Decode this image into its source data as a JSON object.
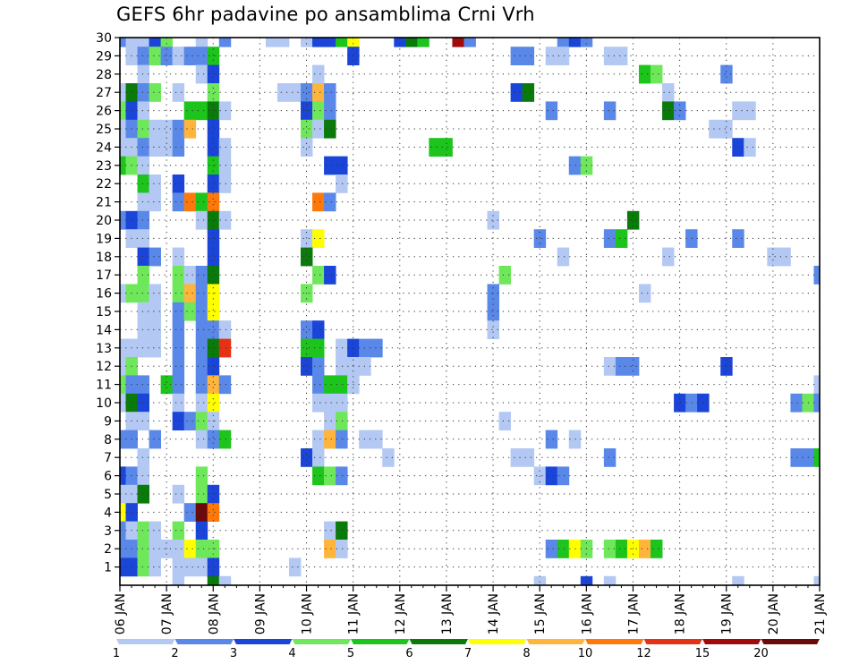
{
  "chart_data": {
    "type": "heatmap",
    "title": "GEFS 6hr padavine po ansamblima Crni Vrh",
    "xlabel": "",
    "ylabel": "",
    "x_ticks": [
      "06 JAN",
      "07 JAN",
      "08 JAN",
      "09 JAN",
      "10 JAN",
      "11 JAN",
      "12 JAN",
      "13 JAN",
      "14 JAN",
      "15 JAN",
      "16 JAN",
      "17 JAN",
      "18 JAN",
      "19 JAN",
      "20 JAN",
      "21 JAN"
    ],
    "x_range_hours": [
      0,
      360
    ],
    "time_step_hours": 6,
    "members": [
      1,
      30
    ],
    "y_ticks": [
      "1",
      "2",
      "3",
      "4",
      "5",
      "6",
      "7",
      "8",
      "9",
      "10",
      "11",
      "12",
      "13",
      "14",
      "15",
      "16",
      "17",
      "18",
      "19",
      "20",
      "21",
      "22",
      "23",
      "24",
      "25",
      "26",
      "27",
      "28",
      "29",
      "30"
    ],
    "grid": true,
    "colorbar": {
      "labels": [
        "1",
        "2",
        "3",
        "4",
        "5",
        "6",
        "7",
        "8",
        "10",
        "12",
        "15",
        "20"
      ],
      "colors": [
        "#b3c8f2",
        "#5a88e8",
        "#1a45d8",
        "#6ee85a",
        "#1cc41c",
        "#0a7a0a",
        "#ffff00",
        "#ffb43c",
        "#ff780a",
        "#e63214",
        "#a00a0a",
        "#6a0a0a"
      ]
    },
    "cells": [
      [
        30,
        0,
        2
      ],
      [
        30,
        1,
        1
      ],
      [
        30,
        2,
        1
      ],
      [
        30,
        3,
        3
      ],
      [
        30,
        4,
        4
      ],
      [
        30,
        7,
        1
      ],
      [
        30,
        9,
        2
      ],
      [
        30,
        13,
        1
      ],
      [
        30,
        14,
        1
      ],
      [
        30,
        16,
        1
      ],
      [
        30,
        17,
        3
      ],
      [
        30,
        18,
        3
      ],
      [
        30,
        19,
        5
      ],
      [
        30,
        20,
        7
      ],
      [
        30,
        24,
        3
      ],
      [
        30,
        25,
        6
      ],
      [
        30,
        26,
        5
      ],
      [
        30,
        29,
        11
      ],
      [
        30,
        30,
        2
      ],
      [
        30,
        38,
        2
      ],
      [
        30,
        39,
        3
      ],
      [
        30,
        40,
        2
      ],
      [
        29,
        1,
        1
      ],
      [
        29,
        2,
        2
      ],
      [
        29,
        3,
        4
      ],
      [
        29,
        4,
        2
      ],
      [
        29,
        5,
        1
      ],
      [
        29,
        6,
        2
      ],
      [
        29,
        7,
        2
      ],
      [
        29,
        8,
        5
      ],
      [
        29,
        20,
        3
      ],
      [
        29,
        34,
        2
      ],
      [
        29,
        35,
        2
      ],
      [
        29,
        37,
        1
      ],
      [
        29,
        38,
        1
      ],
      [
        29,
        42,
        1
      ],
      [
        29,
        43,
        1
      ],
      [
        28,
        2,
        1
      ],
      [
        28,
        7,
        1
      ],
      [
        28,
        8,
        3
      ],
      [
        28,
        17,
        1
      ],
      [
        28,
        45,
        5
      ],
      [
        28,
        46,
        4
      ],
      [
        28,
        52,
        2
      ],
      [
        27,
        0,
        1
      ],
      [
        27,
        1,
        6
      ],
      [
        27,
        2,
        2
      ],
      [
        27,
        3,
        4
      ],
      [
        27,
        5,
        1
      ],
      [
        27,
        8,
        4
      ],
      [
        27,
        14,
        1
      ],
      [
        27,
        15,
        1
      ],
      [
        27,
        16,
        2
      ],
      [
        27,
        17,
        8
      ],
      [
        27,
        18,
        2
      ],
      [
        27,
        34,
        3
      ],
      [
        27,
        35,
        6
      ],
      [
        27,
        47,
        1
      ],
      [
        26,
        0,
        4
      ],
      [
        26,
        1,
        3
      ],
      [
        26,
        2,
        1
      ],
      [
        26,
        6,
        5
      ],
      [
        26,
        7,
        5
      ],
      [
        26,
        8,
        6
      ],
      [
        26,
        9,
        1
      ],
      [
        26,
        16,
        3
      ],
      [
        26,
        17,
        4
      ],
      [
        26,
        18,
        2
      ],
      [
        26,
        37,
        2
      ],
      [
        26,
        42,
        2
      ],
      [
        26,
        47,
        6
      ],
      [
        26,
        48,
        2
      ],
      [
        26,
        53,
        1
      ],
      [
        26,
        54,
        1
      ],
      [
        25,
        0,
        1
      ],
      [
        25,
        1,
        2
      ],
      [
        25,
        2,
        4
      ],
      [
        25,
        3,
        1
      ],
      [
        25,
        4,
        1
      ],
      [
        25,
        5,
        2
      ],
      [
        25,
        6,
        8
      ],
      [
        25,
        8,
        3
      ],
      [
        25,
        16,
        4
      ],
      [
        25,
        17,
        1
      ],
      [
        25,
        18,
        6
      ],
      [
        25,
        51,
        1
      ],
      [
        25,
        52,
        1
      ],
      [
        24,
        0,
        1
      ],
      [
        24,
        1,
        1
      ],
      [
        24,
        2,
        2
      ],
      [
        24,
        3,
        1
      ],
      [
        24,
        4,
        1
      ],
      [
        24,
        5,
        2
      ],
      [
        24,
        8,
        3
      ],
      [
        24,
        9,
        1
      ],
      [
        24,
        16,
        1
      ],
      [
        24,
        27,
        5
      ],
      [
        24,
        28,
        5
      ],
      [
        24,
        53,
        3
      ],
      [
        24,
        54,
        1
      ],
      [
        23,
        0,
        5
      ],
      [
        23,
        1,
        4
      ],
      [
        23,
        2,
        1
      ],
      [
        23,
        8,
        5
      ],
      [
        23,
        9,
        1
      ],
      [
        23,
        18,
        3
      ],
      [
        23,
        19,
        3
      ],
      [
        23,
        39,
        2
      ],
      [
        23,
        40,
        4
      ],
      [
        22,
        2,
        5
      ],
      [
        22,
        3,
        1
      ],
      [
        22,
        5,
        3
      ],
      [
        22,
        8,
        3
      ],
      [
        22,
        9,
        1
      ],
      [
        22,
        19,
        1
      ],
      [
        21,
        2,
        1
      ],
      [
        21,
        3,
        1
      ],
      [
        21,
        5,
        2
      ],
      [
        21,
        6,
        9
      ],
      [
        21,
        7,
        5
      ],
      [
        21,
        8,
        9
      ],
      [
        21,
        17,
        9
      ],
      [
        21,
        18,
        2
      ],
      [
        20,
        0,
        2
      ],
      [
        20,
        1,
        3
      ],
      [
        20,
        2,
        2
      ],
      [
        20,
        7,
        1
      ],
      [
        20,
        8,
        6
      ],
      [
        20,
        9,
        1
      ],
      [
        20,
        32,
        1
      ],
      [
        20,
        44,
        6
      ],
      [
        19,
        1,
        1
      ],
      [
        19,
        2,
        1
      ],
      [
        19,
        8,
        3
      ],
      [
        19,
        16,
        1
      ],
      [
        19,
        17,
        7
      ],
      [
        19,
        36,
        2
      ],
      [
        19,
        42,
        2
      ],
      [
        19,
        43,
        5
      ],
      [
        19,
        49,
        2
      ],
      [
        19,
        53,
        2
      ],
      [
        18,
        2,
        3
      ],
      [
        18,
        3,
        2
      ],
      [
        18,
        5,
        1
      ],
      [
        18,
        8,
        3
      ],
      [
        18,
        16,
        6
      ],
      [
        18,
        38,
        1
      ],
      [
        18,
        47,
        1
      ],
      [
        18,
        56,
        1
      ],
      [
        18,
        57,
        1
      ],
      [
        17,
        2,
        4
      ],
      [
        17,
        5,
        4
      ],
      [
        17,
        6,
        1
      ],
      [
        17,
        7,
        2
      ],
      [
        17,
        8,
        6
      ],
      [
        17,
        17,
        4
      ],
      [
        17,
        18,
        3
      ],
      [
        17,
        33,
        4
      ],
      [
        17,
        60,
        2
      ],
      [
        16,
        0,
        1
      ],
      [
        16,
        1,
        4
      ],
      [
        16,
        2,
        4
      ],
      [
        16,
        3,
        1
      ],
      [
        16,
        5,
        4
      ],
      [
        16,
        6,
        8
      ],
      [
        16,
        7,
        2
      ],
      [
        16,
        8,
        7
      ],
      [
        16,
        16,
        4
      ],
      [
        16,
        32,
        2
      ],
      [
        16,
        45,
        1
      ],
      [
        15,
        2,
        1
      ],
      [
        15,
        3,
        1
      ],
      [
        15,
        5,
        2
      ],
      [
        15,
        6,
        4
      ],
      [
        15,
        7,
        2
      ],
      [
        15,
        8,
        7
      ],
      [
        15,
        32,
        2
      ],
      [
        14,
        2,
        1
      ],
      [
        14,
        3,
        1
      ],
      [
        14,
        5,
        2
      ],
      [
        14,
        7,
        2
      ],
      [
        14,
        8,
        2
      ],
      [
        14,
        9,
        1
      ],
      [
        14,
        16,
        2
      ],
      [
        14,
        17,
        3
      ],
      [
        14,
        32,
        1
      ],
      [
        13,
        0,
        1
      ],
      [
        13,
        1,
        1
      ],
      [
        13,
        2,
        1
      ],
      [
        13,
        3,
        1
      ],
      [
        13,
        5,
        2
      ],
      [
        13,
        7,
        2
      ],
      [
        13,
        8,
        6
      ],
      [
        13,
        9,
        10
      ],
      [
        13,
        16,
        5
      ],
      [
        13,
        17,
        5
      ],
      [
        13,
        19,
        1
      ],
      [
        13,
        20,
        3
      ],
      [
        13,
        21,
        2
      ],
      [
        13,
        22,
        2
      ],
      [
        12,
        0,
        1
      ],
      [
        12,
        1,
        4
      ],
      [
        12,
        5,
        2
      ],
      [
        12,
        7,
        2
      ],
      [
        12,
        8,
        3
      ],
      [
        12,
        16,
        3
      ],
      [
        12,
        17,
        2
      ],
      [
        12,
        19,
        1
      ],
      [
        12,
        20,
        1
      ],
      [
        12,
        21,
        1
      ],
      [
        12,
        42,
        1
      ],
      [
        12,
        43,
        2
      ],
      [
        12,
        44,
        2
      ],
      [
        12,
        52,
        3
      ],
      [
        11,
        0,
        4
      ],
      [
        11,
        1,
        2
      ],
      [
        11,
        2,
        2
      ],
      [
        11,
        4,
        5
      ],
      [
        11,
        5,
        2
      ],
      [
        11,
        7,
        2
      ],
      [
        11,
        8,
        8
      ],
      [
        11,
        9,
        2
      ],
      [
        11,
        17,
        2
      ],
      [
        11,
        18,
        5
      ],
      [
        11,
        19,
        5
      ],
      [
        11,
        20,
        1
      ],
      [
        11,
        60,
        1
      ],
      [
        10,
        0,
        1
      ],
      [
        10,
        1,
        6
      ],
      [
        10,
        2,
        3
      ],
      [
        10,
        5,
        1
      ],
      [
        10,
        7,
        1
      ],
      [
        10,
        8,
        7
      ],
      [
        10,
        17,
        1
      ],
      [
        10,
        18,
        1
      ],
      [
        10,
        19,
        1
      ],
      [
        10,
        48,
        3
      ],
      [
        10,
        49,
        2
      ],
      [
        10,
        50,
        3
      ],
      [
        10,
        58,
        2
      ],
      [
        10,
        59,
        4
      ],
      [
        10,
        60,
        2
      ],
      [
        9,
        1,
        1
      ],
      [
        9,
        2,
        1
      ],
      [
        9,
        5,
        3
      ],
      [
        9,
        6,
        2
      ],
      [
        9,
        7,
        4
      ],
      [
        9,
        8,
        1
      ],
      [
        9,
        18,
        1
      ],
      [
        9,
        19,
        4
      ],
      [
        9,
        33,
        1
      ],
      [
        8,
        0,
        2
      ],
      [
        8,
        1,
        2
      ],
      [
        8,
        3,
        2
      ],
      [
        8,
        7,
        1
      ],
      [
        8,
        8,
        2
      ],
      [
        8,
        9,
        5
      ],
      [
        8,
        17,
        1
      ],
      [
        8,
        18,
        8
      ],
      [
        8,
        19,
        2
      ],
      [
        8,
        21,
        1
      ],
      [
        8,
        22,
        1
      ],
      [
        8,
        37,
        2
      ],
      [
        8,
        39,
        1
      ],
      [
        7,
        2,
        1
      ],
      [
        7,
        16,
        3
      ],
      [
        7,
        17,
        1
      ],
      [
        7,
        23,
        1
      ],
      [
        7,
        34,
        1
      ],
      [
        7,
        35,
        1
      ],
      [
        7,
        42,
        2
      ],
      [
        7,
        58,
        2
      ],
      [
        7,
        59,
        2
      ],
      [
        7,
        60,
        5
      ],
      [
        6,
        0,
        3
      ],
      [
        6,
        1,
        2
      ],
      [
        6,
        2,
        1
      ],
      [
        6,
        7,
        4
      ],
      [
        6,
        17,
        5
      ],
      [
        6,
        18,
        4
      ],
      [
        6,
        19,
        2
      ],
      [
        6,
        36,
        1
      ],
      [
        6,
        37,
        3
      ],
      [
        6,
        38,
        2
      ],
      [
        5,
        0,
        1
      ],
      [
        5,
        1,
        1
      ],
      [
        5,
        2,
        6
      ],
      [
        5,
        5,
        1
      ],
      [
        5,
        7,
        4
      ],
      [
        5,
        8,
        3
      ],
      [
        4,
        0,
        7
      ],
      [
        4,
        1,
        3
      ],
      [
        4,
        6,
        2
      ],
      [
        4,
        7,
        12
      ],
      [
        4,
        8,
        9
      ],
      [
        3,
        0,
        2
      ],
      [
        3,
        1,
        1
      ],
      [
        3,
        2,
        4
      ],
      [
        3,
        3,
        1
      ],
      [
        3,
        5,
        4
      ],
      [
        3,
        7,
        3
      ],
      [
        3,
        18,
        1
      ],
      [
        3,
        19,
        6
      ],
      [
        2,
        0,
        2
      ],
      [
        2,
        1,
        2
      ],
      [
        2,
        2,
        4
      ],
      [
        2,
        3,
        1
      ],
      [
        2,
        4,
        1
      ],
      [
        2,
        5,
        1
      ],
      [
        2,
        6,
        7
      ],
      [
        2,
        7,
        4
      ],
      [
        2,
        8,
        4
      ],
      [
        2,
        18,
        8
      ],
      [
        2,
        19,
        1
      ],
      [
        2,
        37,
        2
      ],
      [
        2,
        38,
        5
      ],
      [
        2,
        39,
        7
      ],
      [
        2,
        40,
        4
      ],
      [
        2,
        42,
        4
      ],
      [
        2,
        43,
        5
      ],
      [
        2,
        44,
        7
      ],
      [
        2,
        45,
        8
      ],
      [
        2,
        46,
        5
      ],
      [
        1,
        0,
        3
      ],
      [
        1,
        1,
        3
      ],
      [
        1,
        2,
        4
      ],
      [
        1,
        3,
        1
      ],
      [
        1,
        5,
        1
      ],
      [
        1,
        6,
        1
      ],
      [
        1,
        7,
        1
      ],
      [
        1,
        8,
        3
      ],
      [
        1,
        15,
        1
      ],
      [
        0,
        5,
        1
      ],
      [
        0,
        8,
        6
      ],
      [
        0,
        9,
        1
      ],
      [
        0,
        36,
        1
      ],
      [
        0,
        40,
        3
      ],
      [
        0,
        42,
        1
      ],
      [
        0,
        53,
        1
      ],
      [
        0,
        60,
        1
      ]
    ]
  }
}
